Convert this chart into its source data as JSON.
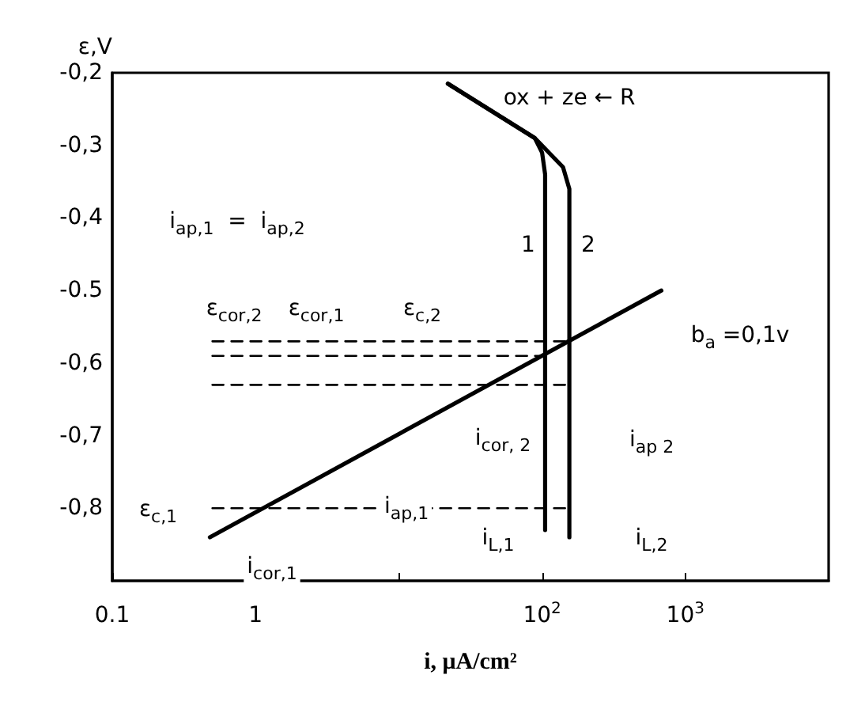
{
  "chart_data": {
    "type": "line",
    "xlabel": "i, μA/cm²",
    "ylabel": "ε,V",
    "log": "x",
    "grid": false,
    "marker": "none",
    "xlim": [
      0.1,
      10000
    ],
    "xticks": [
      {
        "value": 0.1,
        "label": "0.1"
      },
      1,
      {
        "value": 10,
        "label": null
      },
      {
        "value": 100,
        "label": "10$^{2}$"
      },
      {
        "value": 1000,
        "label": "10$^{3}$"
      }
    ],
    "ylim": [
      -0.9,
      -0.2
    ],
    "yticks": [
      {
        "value": -0.2,
        "label": "-0,2"
      },
      {
        "value": -0.3,
        "label": "-0,3"
      },
      {
        "value": -0.4,
        "label": "-0,4"
      },
      {
        "value": -0.5,
        "label": "-0.5"
      },
      {
        "value": -0.6,
        "label": "-0,6"
      },
      {
        "value": -0.7,
        "label": "-0,7"
      },
      {
        "value": -0.8,
        "label": "-0,8"
      }
    ],
    "series": [
      {
        "color": "#000000",
        "line_style": "solid",
        "x": [
          0.48,
          680
        ],
        "values": [
          -0.84,
          -0.5
        ]
      },
      {
        "color": "#000000",
        "line_style": "solid",
        "x": [
          22,
          89,
          100,
          105,
          105
        ],
        "values": [
          -0.215,
          -0.29,
          -0.31,
          -0.34,
          -0.83
        ]
      },
      {
        "color": "#000000",
        "line_style": "solid",
        "x": [
          22,
          89,
          140,
          155,
          155
        ],
        "values": [
          -0.215,
          -0.29,
          -0.33,
          -0.36,
          -0.84
        ]
      },
      {
        "color": "#000000",
        "line_style": "dashed",
        "x": [
          0.5,
          155
        ],
        "values": [
          -0.57,
          -0.57
        ]
      },
      {
        "color": "#000000",
        "line_style": "dashed",
        "x": [
          0.5,
          105
        ],
        "values": [
          -0.59,
          -0.59
        ]
      },
      {
        "color": "#000000",
        "line_style": "dashed",
        "x": [
          0.5,
          155
        ],
        "values": [
          -0.63,
          -0.63
        ]
      },
      {
        "color": "#000000",
        "line_style": "dashed",
        "x": [
          0.5,
          155
        ],
        "values": [
          -0.8,
          -0.8
        ]
      }
    ],
    "annotations": [
      "i$_{ap,1}$  =  i$_{ap,2}$",
      "ox + ze ← R",
      "1",
      "2",
      "ε$_{cor,2}$",
      "ε$_{cor,1}$",
      "ε$_{c,2}$",
      "b$_{a}$ =0,1v",
      "i$_{cor, 2}$",
      "i$_{ap 2}$",
      "ε$_{c,1}$",
      "i$_{cor,1}$",
      "i$_{ap,1}$",
      "i$_{L,1}$",
      "i$_{L,2}$"
    ]
  }
}
